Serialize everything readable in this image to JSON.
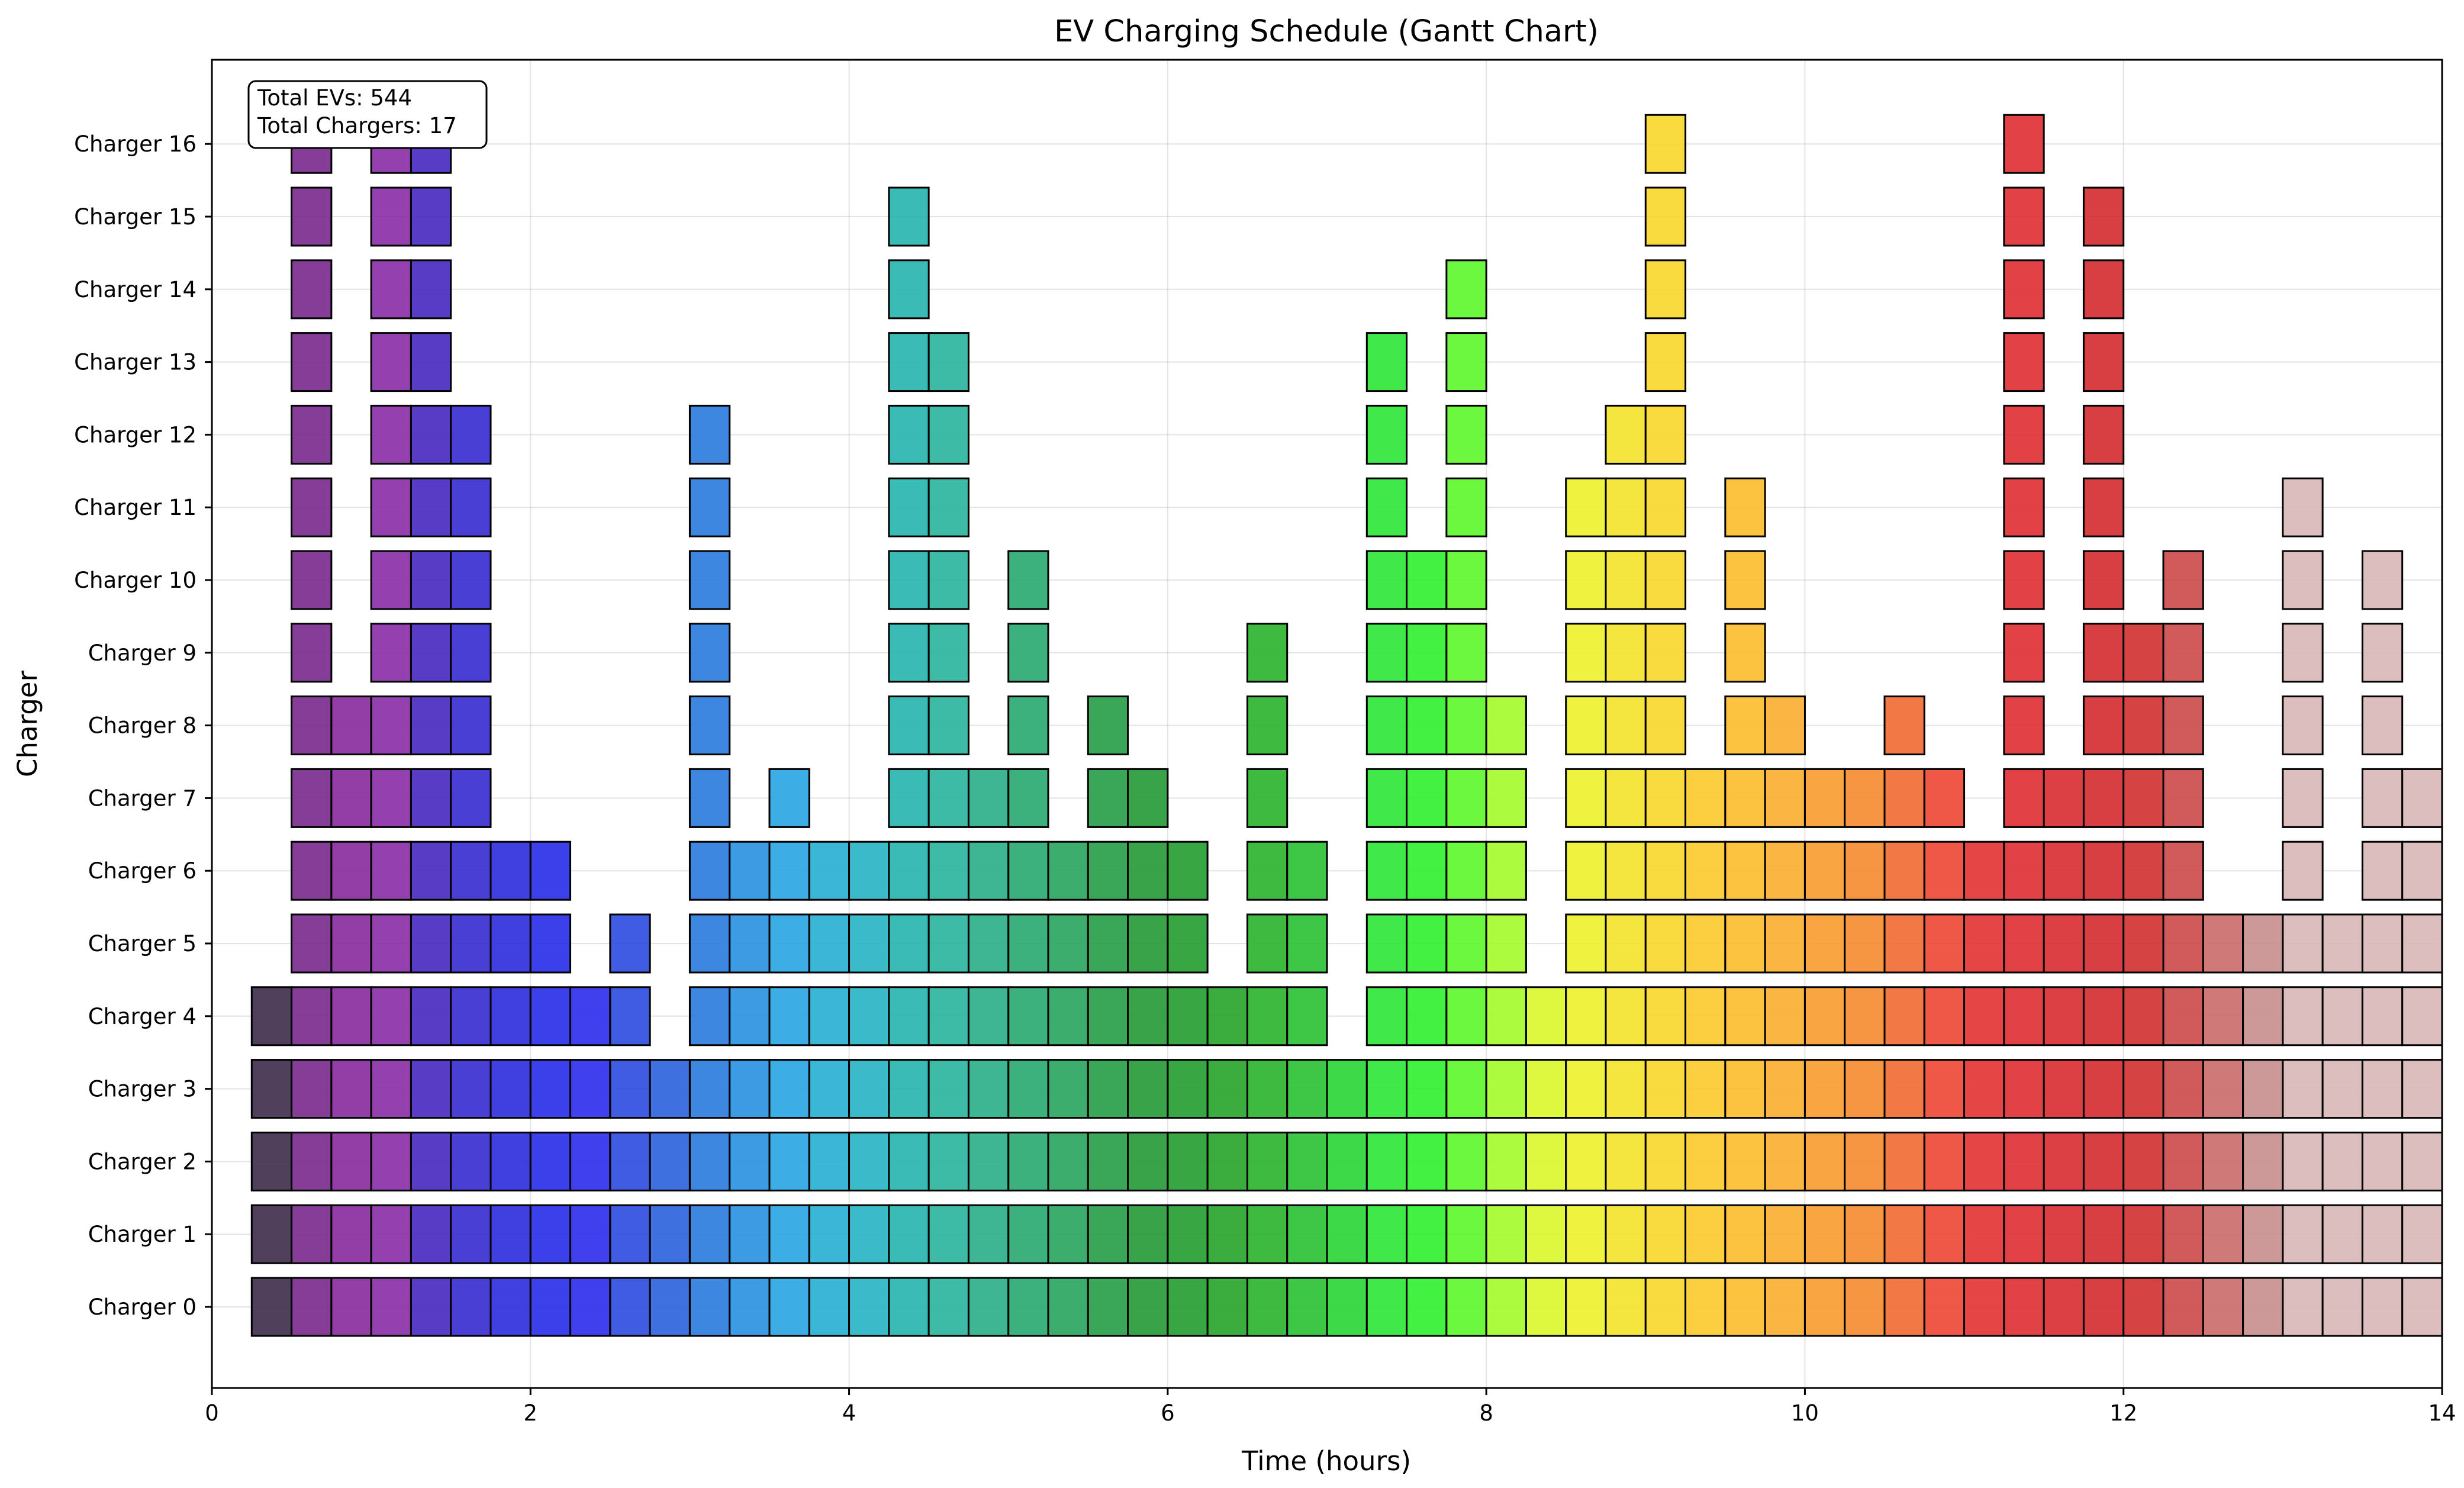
{
  "chart_data": {
    "type": "gantt",
    "title": "EV Charging Schedule (Gantt Chart)",
    "xlabel": "Time (hours)",
    "ylabel": "Charger",
    "xlim": [
      0,
      14
    ],
    "xticks": [
      "0",
      "2",
      "4",
      "6",
      "8",
      "10",
      "12",
      "14"
    ],
    "xtick_values": [
      0,
      2,
      4,
      6,
      8,
      10,
      12,
      14
    ],
    "slot_width_hours": 0.25,
    "grid": true,
    "info_box": {
      "position": "top-left",
      "lines": [
        "Total EVs: 544",
        "Total Chargers: 17"
      ]
    },
    "chargers": [
      {
        "label": "Charger 0",
        "runs": [
          [
            0.25,
            14
          ]
        ]
      },
      {
        "label": "Charger 1",
        "runs": [
          [
            0.25,
            14
          ]
        ]
      },
      {
        "label": "Charger 2",
        "runs": [
          [
            0.25,
            14
          ]
        ]
      },
      {
        "label": "Charger 3",
        "runs": [
          [
            0.25,
            14
          ]
        ]
      },
      {
        "label": "Charger 4",
        "runs": [
          [
            0.25,
            2.75
          ],
          [
            3.0,
            7.0
          ],
          [
            7.25,
            14
          ]
        ]
      },
      {
        "label": "Charger 5",
        "runs": [
          [
            0.5,
            2.25
          ],
          [
            2.5,
            2.75
          ],
          [
            3.0,
            6.25
          ],
          [
            6.5,
            7.0
          ],
          [
            7.25,
            8.25
          ],
          [
            8.5,
            14
          ]
        ]
      },
      {
        "label": "Charger 6",
        "runs": [
          [
            0.5,
            2.25
          ],
          [
            3.0,
            6.25
          ],
          [
            6.5,
            7.0
          ],
          [
            7.25,
            8.25
          ],
          [
            8.5,
            12.5
          ],
          [
            13.0,
            13.25
          ],
          [
            13.5,
            14
          ]
        ]
      },
      {
        "label": "Charger 7",
        "runs": [
          [
            0.5,
            1.75
          ],
          [
            3.0,
            3.25
          ],
          [
            3.5,
            3.75
          ],
          [
            4.25,
            5.25
          ],
          [
            5.5,
            6.0
          ],
          [
            6.5,
            6.75
          ],
          [
            7.25,
            8.25
          ],
          [
            8.5,
            11.0
          ],
          [
            11.25,
            12.5
          ],
          [
            13.0,
            13.25
          ],
          [
            13.5,
            14
          ]
        ]
      },
      {
        "label": "Charger 8",
        "runs": [
          [
            0.5,
            1.75
          ],
          [
            3.0,
            3.25
          ],
          [
            4.25,
            4.75
          ],
          [
            5.0,
            5.25
          ],
          [
            5.5,
            5.75
          ],
          [
            6.5,
            6.75
          ],
          [
            7.25,
            8.25
          ],
          [
            8.5,
            9.25
          ],
          [
            9.5,
            10.0
          ],
          [
            10.5,
            10.75
          ],
          [
            11.25,
            11.5
          ],
          [
            11.75,
            12.5
          ],
          [
            13.0,
            13.25
          ],
          [
            13.5,
            13.75
          ]
        ]
      },
      {
        "label": "Charger 9",
        "runs": [
          [
            0.5,
            0.75
          ],
          [
            1.0,
            1.75
          ],
          [
            3.0,
            3.25
          ],
          [
            4.25,
            4.75
          ],
          [
            5.0,
            5.25
          ],
          [
            6.5,
            6.75
          ],
          [
            7.25,
            8.0
          ],
          [
            8.5,
            9.25
          ],
          [
            9.5,
            9.75
          ],
          [
            11.25,
            11.5
          ],
          [
            11.75,
            12.5
          ],
          [
            13.0,
            13.25
          ],
          [
            13.5,
            13.75
          ]
        ]
      },
      {
        "label": "Charger 10",
        "runs": [
          [
            0.5,
            0.75
          ],
          [
            1.0,
            1.75
          ],
          [
            3.0,
            3.25
          ],
          [
            4.25,
            4.75
          ],
          [
            5.0,
            5.25
          ],
          [
            7.25,
            8.0
          ],
          [
            8.5,
            9.25
          ],
          [
            9.5,
            9.75
          ],
          [
            11.25,
            11.5
          ],
          [
            11.75,
            12.0
          ],
          [
            12.25,
            12.5
          ],
          [
            13.0,
            13.25
          ],
          [
            13.5,
            13.75
          ]
        ]
      },
      {
        "label": "Charger 11",
        "runs": [
          [
            0.5,
            0.75
          ],
          [
            1.0,
            1.75
          ],
          [
            3.0,
            3.25
          ],
          [
            4.25,
            4.75
          ],
          [
            7.25,
            7.5
          ],
          [
            7.75,
            8.0
          ],
          [
            8.5,
            9.25
          ],
          [
            9.5,
            9.75
          ],
          [
            11.25,
            11.5
          ],
          [
            11.75,
            12.0
          ],
          [
            13.0,
            13.25
          ]
        ]
      },
      {
        "label": "Charger 12",
        "runs": [
          [
            0.5,
            0.75
          ],
          [
            1.0,
            1.75
          ],
          [
            3.0,
            3.25
          ],
          [
            4.25,
            4.75
          ],
          [
            7.25,
            7.5
          ],
          [
            7.75,
            8.0
          ],
          [
            8.75,
            9.25
          ],
          [
            11.25,
            11.5
          ],
          [
            11.75,
            12.0
          ]
        ]
      },
      {
        "label": "Charger 13",
        "runs": [
          [
            0.5,
            0.75
          ],
          [
            1.0,
            1.5
          ],
          [
            4.25,
            4.75
          ],
          [
            7.25,
            7.5
          ],
          [
            7.75,
            8.0
          ],
          [
            9.0,
            9.25
          ],
          [
            11.25,
            11.5
          ],
          [
            11.75,
            12.0
          ]
        ]
      },
      {
        "label": "Charger 14",
        "runs": [
          [
            0.5,
            0.75
          ],
          [
            1.0,
            1.5
          ],
          [
            4.25,
            4.5
          ],
          [
            7.75,
            8.0
          ],
          [
            9.0,
            9.25
          ],
          [
            11.25,
            11.5
          ],
          [
            11.75,
            12.0
          ]
        ]
      },
      {
        "label": "Charger 15",
        "runs": [
          [
            0.5,
            0.75
          ],
          [
            1.0,
            1.5
          ],
          [
            4.25,
            4.5
          ],
          [
            9.0,
            9.25
          ],
          [
            11.25,
            11.5
          ],
          [
            11.75,
            12.0
          ]
        ]
      },
      {
        "label": "Charger 16",
        "runs": [
          [
            0.5,
            0.75
          ],
          [
            1.0,
            1.5
          ],
          [
            9.0,
            9.25
          ],
          [
            11.25,
            11.5
          ]
        ]
      }
    ],
    "slot_colors": [
      "#333333",
      "#42304d",
      "#7b2d8f",
      "#8a2ea0",
      "#8c30a8",
      "#4a2bc0",
      "#3a2fd0",
      "#3030dd",
      "#2a30e8",
      "#3030ee",
      "#2f4ee0",
      "#2e64dc",
      "#2c7ddd",
      "#2c93e2",
      "#2ca6e4",
      "#2bb0d4",
      "#2ab5c4",
      "#2ab5b0",
      "#2db5a0",
      "#2eb08a",
      "#2daa72",
      "#2ba660",
      "#29a04a",
      "#279b3a",
      "#279e33",
      "#2aa62f",
      "#2db42f",
      "#2ec237",
      "#2ed63a",
      "#30e63a",
      "#32f032",
      "#5ef72e",
      "#a6fb2e",
      "#daf72f",
      "#eef12e",
      "#f3e42e",
      "#f8d82f",
      "#fbcb2f",
      "#fbbe30",
      "#faaf32",
      "#f99e32",
      "#f58d33",
      "#f16e36",
      "#ee4a36",
      "#e43536",
      "#df3236",
      "#d92f34",
      "#d42f33",
      "#d23333",
      "#cd4c4c",
      "#cc6e6e",
      "#c98f8f",
      "#d9b8b8"
    ]
  }
}
